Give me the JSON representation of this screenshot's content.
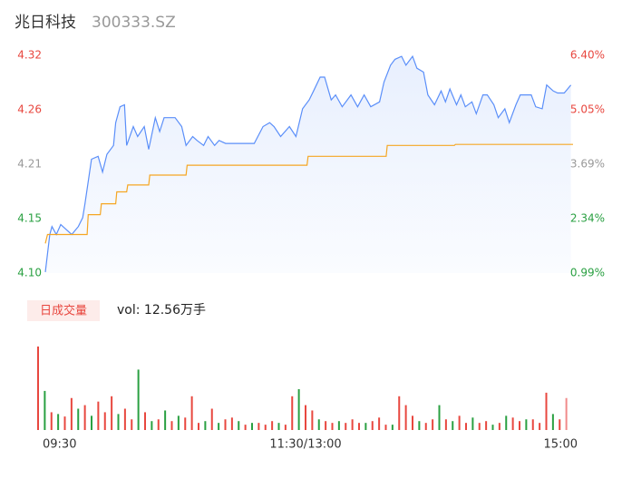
{
  "header": {
    "title": "兆日科技",
    "code": "300333.SZ"
  },
  "chart_data": [
    {
      "type": "line",
      "xlim": [
        0,
        240
      ],
      "ylim": [
        4.1,
        4.32
      ],
      "yticks": [
        {
          "value": 4.1,
          "label": "4.10"
        },
        {
          "value": 4.155,
          "label": "4.15"
        },
        {
          "value": 4.21,
          "label": "4.21"
        },
        {
          "value": 4.265,
          "label": "4.26"
        },
        {
          "value": 4.32,
          "label": "4.32"
        }
      ],
      "y2lim": [
        0.99,
        6.4
      ],
      "y2ticks": [
        {
          "value": 0.99,
          "label": "0.99%"
        },
        {
          "value": 2.34,
          "label": "2.34%"
        },
        {
          "value": 3.69,
          "label": "3.69%"
        },
        {
          "value": 5.05,
          "label": "5.05%"
        },
        {
          "value": 6.4,
          "label": "6.40%"
        }
      ],
      "ytick_colors": [
        "#2aa042",
        "#2aa042",
        "#999999",
        "#e8473f",
        "#e8473f"
      ],
      "series": [
        {
          "name": "price",
          "color": "#5b8ff9",
          "x": [
            0,
            2,
            3,
            5,
            7,
            8,
            12,
            15,
            17,
            18,
            20,
            21,
            24,
            26,
            28,
            31,
            32,
            34,
            36,
            37,
            40,
            42,
            45,
            47,
            50,
            52,
            54,
            57,
            59,
            62,
            64,
            67,
            69,
            72,
            74,
            77,
            79,
            82,
            87,
            91,
            95,
            99,
            102,
            104,
            107,
            111,
            114,
            117,
            120,
            122,
            125,
            127,
            130,
            132,
            135,
            139,
            142,
            145,
            148,
            152,
            154,
            157,
            159,
            162,
            164,
            167,
            169,
            172,
            174,
            177,
            180,
            182,
            184,
            187,
            189,
            191,
            194,
            196,
            199,
            201,
            204,
            206,
            209,
            211,
            214,
            216,
            219,
            221,
            223,
            226,
            228,
            231,
            233,
            236,
            239
          ],
          "values": [
            4.101,
            4.139,
            4.147,
            4.139,
            4.149,
            4.147,
            4.139,
            4.147,
            4.156,
            4.17,
            4.2,
            4.215,
            4.218,
            4.202,
            4.22,
            4.229,
            4.252,
            4.268,
            4.27,
            4.229,
            4.248,
            4.238,
            4.248,
            4.225,
            4.257,
            4.243,
            4.257,
            4.257,
            4.257,
            4.248,
            4.229,
            4.238,
            4.234,
            4.229,
            4.238,
            4.229,
            4.234,
            4.231,
            4.231,
            4.231,
            4.231,
            4.248,
            4.252,
            4.248,
            4.238,
            4.248,
            4.238,
            4.266,
            4.275,
            4.284,
            4.298,
            4.298,
            4.275,
            4.28,
            4.268,
            4.28,
            4.268,
            4.28,
            4.268,
            4.273,
            4.293,
            4.31,
            4.316,
            4.319,
            4.31,
            4.319,
            4.307,
            4.303,
            4.28,
            4.27,
            4.284,
            4.273,
            4.286,
            4.27,
            4.28,
            4.268,
            4.273,
            4.261,
            4.28,
            4.28,
            4.27,
            4.257,
            4.266,
            4.252,
            4.27,
            4.28,
            4.28,
            4.28,
            4.268,
            4.266,
            4.29,
            4.284,
            4.282,
            4.282,
            4.29
          ]
        },
        {
          "name": "avg",
          "color": "#f5a623",
          "x": [
            0,
            1,
            19,
            19.5,
            25,
            25.5,
            32,
            32.5,
            37,
            37.5,
            47,
            47.5,
            64,
            64.5,
            119,
            119.5,
            155,
            155.5,
            186,
            186.5,
            240
          ],
          "values": [
            4.13,
            4.139,
            4.139,
            4.159,
            4.159,
            4.17,
            4.17,
            4.182,
            4.182,
            4.189,
            4.189,
            4.199,
            4.199,
            4.209,
            4.209,
            4.218,
            4.218,
            4.229,
            4.229,
            4.23,
            4.23
          ]
        }
      ]
    },
    {
      "type": "bar",
      "legend": "日成交量",
      "total": "vol: 12.56万手",
      "xlim": [
        0,
        240
      ],
      "ylim": [
        0,
        2400
      ],
      "xticks": [
        {
          "value": 0,
          "label": "09:30"
        },
        {
          "value": 120,
          "label": "11:30/13:00"
        },
        {
          "value": 240,
          "label": "15:00"
        }
      ],
      "x": [
        0,
        3,
        6,
        9,
        12,
        15,
        18,
        21,
        24,
        27,
        30,
        33,
        36,
        39,
        42,
        45,
        48,
        51,
        54,
        57,
        60,
        63,
        66,
        69,
        72,
        75,
        78,
        81,
        84,
        87,
        90,
        93,
        96,
        99,
        102,
        105,
        108,
        111,
        114,
        117,
        120,
        123,
        126,
        129,
        132,
        135,
        138,
        141,
        144,
        147,
        150,
        153,
        156,
        159,
        162,
        165,
        168,
        171,
        174,
        177,
        180,
        183,
        186,
        189,
        192,
        195,
        198,
        201,
        204,
        207,
        210,
        213,
        216,
        219,
        222,
        225,
        228,
        231,
        234,
        237
      ],
      "values": [
        2350,
        1100,
        500,
        450,
        380,
        900,
        600,
        700,
        400,
        800,
        500,
        950,
        450,
        600,
        300,
        1700,
        500,
        250,
        300,
        550,
        250,
        400,
        350,
        950,
        200,
        250,
        600,
        200,
        300,
        350,
        250,
        150,
        200,
        200,
        150,
        250,
        200,
        150,
        950,
        1150,
        700,
        550,
        300,
        250,
        200,
        250,
        200,
        300,
        200,
        200,
        250,
        350,
        150,
        150,
        950,
        700,
        400,
        250,
        200,
        300,
        700,
        300,
        250,
        400,
        200,
        350,
        200,
        250,
        150,
        200,
        400,
        350,
        250,
        300,
        300,
        200,
        1050,
        450,
        300,
        900
      ],
      "colors": [
        "#e8473f",
        "#2aa042",
        "#e8473f",
        "#2aa042",
        "#e8473f",
        "#e8473f",
        "#2aa042",
        "#e8473f",
        "#2aa042",
        "#e8473f",
        "#e8473f",
        "#e8473f",
        "#2aa042",
        "#e8473f",
        "#e8473f",
        "#2aa042",
        "#e8473f",
        "#2aa042",
        "#e8473f",
        "#2aa042",
        "#e8473f",
        "#2aa042",
        "#e8473f",
        "#e8473f",
        "#e8473f",
        "#2aa042",
        "#e8473f",
        "#2aa042",
        "#e8473f",
        "#e8473f",
        "#2aa042",
        "#e8473f",
        "#2aa042",
        "#e8473f",
        "#e8473f",
        "#e8473f",
        "#2aa042",
        "#e8473f",
        "#e8473f",
        "#2aa042",
        "#e8473f",
        "#e8473f",
        "#2aa042",
        "#e8473f",
        "#e8473f",
        "#2aa042",
        "#e8473f",
        "#e8473f",
        "#e8473f",
        "#2aa042",
        "#e8473f",
        "#e8473f",
        "#e8473f",
        "#2aa042",
        "#e8473f",
        "#e8473f",
        "#e8473f",
        "#2aa042",
        "#e8473f",
        "#e8473f",
        "#2aa042",
        "#e8473f",
        "#2aa042",
        "#e8473f",
        "#e8473f",
        "#2aa042",
        "#e8473f",
        "#e8473f",
        "#2aa042",
        "#e8473f",
        "#2aa042",
        "#e8473f",
        "#e8473f",
        "#2aa042",
        "#e8473f",
        "#e8473f",
        "#e8473f",
        "#2aa042",
        "#e8473f",
        "#f08a8a"
      ]
    }
  ]
}
